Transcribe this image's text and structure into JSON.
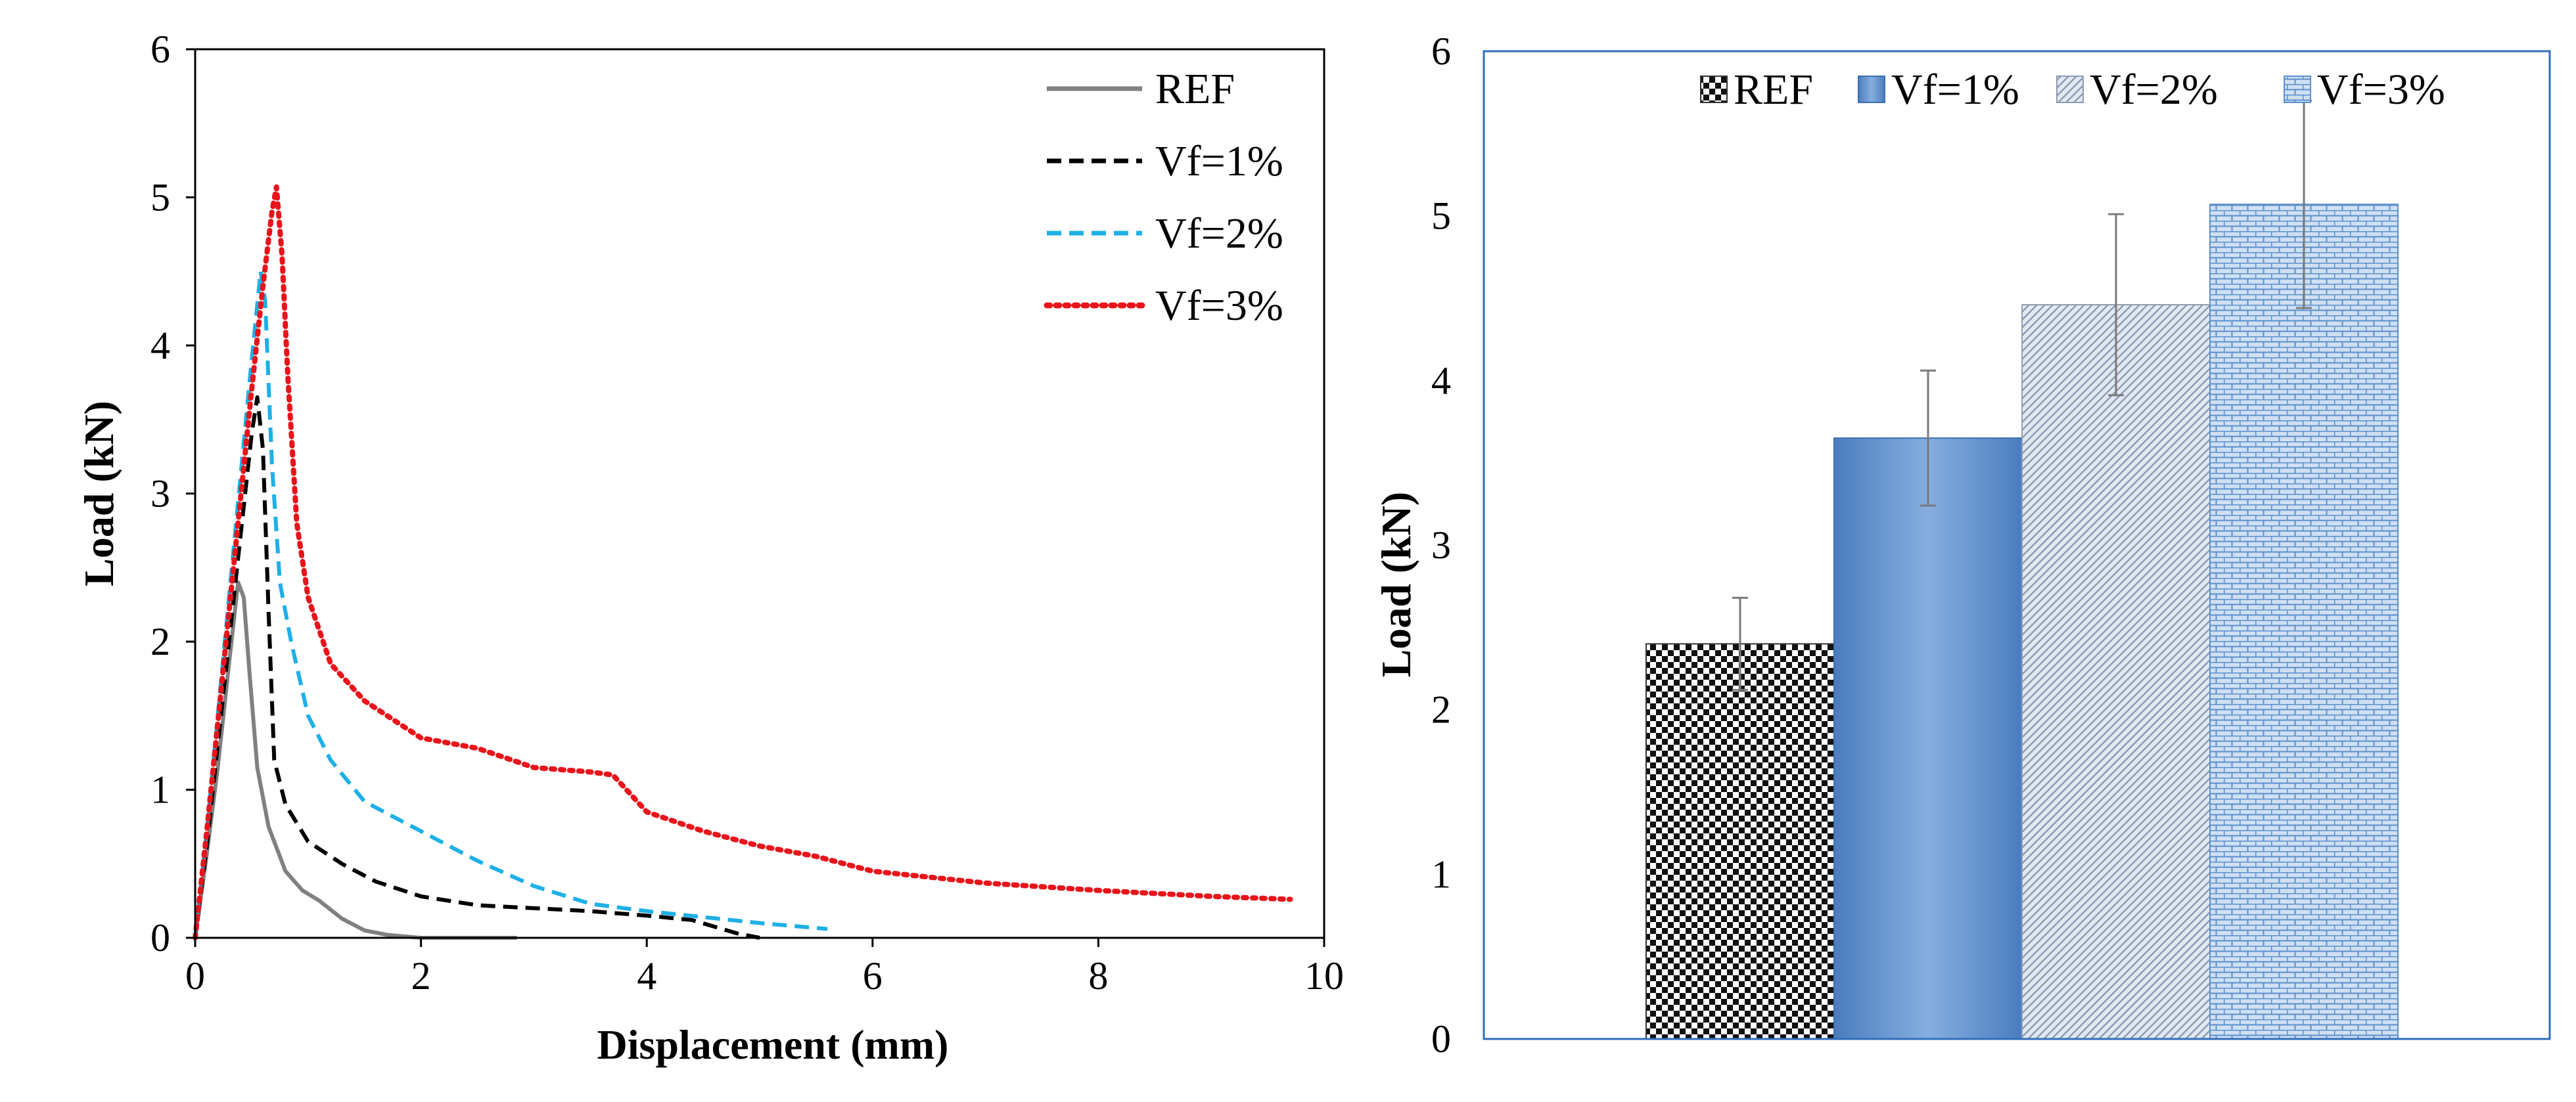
{
  "chart_data": [
    {
      "type": "line",
      "xlabel": "Displacement (mm)",
      "ylabel": "Load (kN)",
      "xlim": [
        0,
        10
      ],
      "ylim": [
        0,
        6
      ],
      "xticks": [
        0,
        2,
        4,
        6,
        8,
        10
      ],
      "yticks": [
        0,
        1,
        2,
        3,
        4,
        5,
        6
      ],
      "grid": false,
      "legend": "top-right",
      "series": [
        {
          "name": "REF",
          "color": "#808080",
          "style": "solid",
          "points": [
            [
              0,
              0
            ],
            [
              0.1,
              0.55
            ],
            [
              0.2,
              1.15
            ],
            [
              0.3,
              1.85
            ],
            [
              0.38,
              2.4
            ],
            [
              0.43,
              2.3
            ],
            [
              0.48,
              1.8
            ],
            [
              0.55,
              1.15
            ],
            [
              0.65,
              0.75
            ],
            [
              0.8,
              0.45
            ],
            [
              0.95,
              0.32
            ],
            [
              1.1,
              0.25
            ],
            [
              1.3,
              0.13
            ],
            [
              1.5,
              0.05
            ],
            [
              1.7,
              0.02
            ],
            [
              2.0,
              0.0
            ],
            [
              2.5,
              0.0
            ],
            [
              2.85,
              0.0
            ]
          ]
        },
        {
          "name": "Vf=1%",
          "color": "#000000",
          "style": "dashed",
          "points": [
            [
              0,
              0
            ],
            [
              0.1,
              0.6
            ],
            [
              0.2,
              1.3
            ],
            [
              0.3,
              2.0
            ],
            [
              0.4,
              2.7
            ],
            [
              0.5,
              3.4
            ],
            [
              0.55,
              3.65
            ],
            [
              0.6,
              3.3
            ],
            [
              0.65,
              2.2
            ],
            [
              0.7,
              1.2
            ],
            [
              0.8,
              0.9
            ],
            [
              1.0,
              0.65
            ],
            [
              1.3,
              0.5
            ],
            [
              1.6,
              0.38
            ],
            [
              2.0,
              0.28
            ],
            [
              2.5,
              0.22
            ],
            [
              3.0,
              0.2
            ],
            [
              3.5,
              0.18
            ],
            [
              4.0,
              0.15
            ],
            [
              4.4,
              0.12
            ],
            [
              4.8,
              0.03
            ],
            [
              5.0,
              0.0
            ]
          ]
        },
        {
          "name": "Vf=2%",
          "color": "#1EB0E6",
          "style": "dashed",
          "points": [
            [
              0,
              0
            ],
            [
              0.1,
              0.7
            ],
            [
              0.2,
              1.5
            ],
            [
              0.3,
              2.3
            ],
            [
              0.4,
              3.1
            ],
            [
              0.5,
              3.9
            ],
            [
              0.58,
              4.5
            ],
            [
              0.62,
              4.3
            ],
            [
              0.68,
              3.2
            ],
            [
              0.75,
              2.4
            ],
            [
              0.85,
              2.0
            ],
            [
              1.0,
              1.5
            ],
            [
              1.2,
              1.2
            ],
            [
              1.5,
              0.92
            ],
            [
              1.8,
              0.8
            ],
            [
              2.0,
              0.72
            ],
            [
              2.5,
              0.52
            ],
            [
              3.0,
              0.35
            ],
            [
              3.5,
              0.23
            ],
            [
              4.0,
              0.18
            ],
            [
              4.5,
              0.14
            ],
            [
              5.0,
              0.1
            ],
            [
              5.6,
              0.06
            ]
          ]
        },
        {
          "name": "Vf=3%",
          "color": "#E8141B",
          "style": "dotted",
          "points": [
            [
              0,
              0
            ],
            [
              0.1,
              0.7
            ],
            [
              0.2,
              1.45
            ],
            [
              0.3,
              2.2
            ],
            [
              0.4,
              2.95
            ],
            [
              0.5,
              3.7
            ],
            [
              0.6,
              4.4
            ],
            [
              0.68,
              4.9
            ],
            [
              0.72,
              5.07
            ],
            [
              0.77,
              4.6
            ],
            [
              0.82,
              3.8
            ],
            [
              0.9,
              2.8
            ],
            [
              1.0,
              2.3
            ],
            [
              1.2,
              1.85
            ],
            [
              1.5,
              1.6
            ],
            [
              2.0,
              1.35
            ],
            [
              2.5,
              1.28
            ],
            [
              3.0,
              1.15
            ],
            [
              3.5,
              1.12
            ],
            [
              3.7,
              1.1
            ],
            [
              4.0,
              0.85
            ],
            [
              4.5,
              0.72
            ],
            [
              5.0,
              0.62
            ],
            [
              5.5,
              0.55
            ],
            [
              6.0,
              0.45
            ],
            [
              7.0,
              0.37
            ],
            [
              8.0,
              0.32
            ],
            [
              9.0,
              0.28
            ],
            [
              9.7,
              0.26
            ]
          ]
        }
      ]
    },
    {
      "type": "bar",
      "ylabel": "Load (kN)",
      "ylim": [
        0,
        6
      ],
      "yticks": [
        0,
        1,
        2,
        3,
        4,
        5,
        6
      ],
      "grid": false,
      "legend": "top",
      "categories": [
        "REF",
        "Vf=1%",
        "Vf=2%",
        "Vf=3%"
      ],
      "values": [
        2.4,
        3.65,
        4.46,
        5.07
      ],
      "errors": [
        0.28,
        0.41,
        0.55,
        0.63
      ],
      "colors": [
        "#1a1a1a",
        "#4F86C6",
        "#A9B8CC",
        "#6E9FD6"
      ]
    }
  ]
}
